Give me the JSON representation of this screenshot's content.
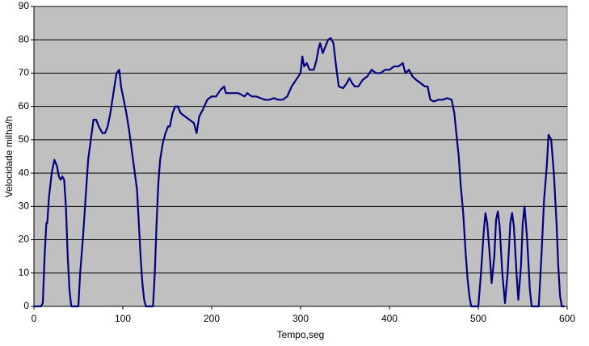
{
  "chart_data": {
    "type": "line",
    "x_label": "Tempo,seg",
    "y_label": "Velocidade milha/h",
    "x": [
      0,
      8,
      10,
      12,
      14,
      15,
      17,
      20,
      23,
      26,
      28,
      30,
      32,
      34,
      36,
      38,
      40,
      42,
      50,
      52,
      55,
      58,
      61,
      64,
      67,
      70,
      73,
      77,
      80,
      83,
      86,
      90,
      93,
      96,
      98,
      101,
      104,
      107,
      110,
      113,
      116,
      118,
      120,
      122,
      124,
      126,
      134,
      136,
      138,
      140,
      142,
      145,
      148,
      151,
      153,
      156,
      159,
      162,
      165,
      170,
      175,
      180,
      183,
      186,
      190,
      195,
      200,
      205,
      210,
      214,
      216,
      220,
      230,
      237,
      240,
      245,
      250,
      255,
      260,
      265,
      270,
      275,
      280,
      285,
      290,
      295,
      300,
      302,
      304,
      307,
      310,
      315,
      318,
      320,
      322,
      325,
      328,
      331,
      334,
      337,
      340,
      343,
      348,
      352,
      355,
      358,
      361,
      365,
      370,
      375,
      380,
      385,
      390,
      395,
      400,
      405,
      410,
      415,
      418,
      422,
      426,
      430,
      435,
      440,
      443,
      446,
      450,
      455,
      460,
      465,
      470,
      473,
      476,
      478,
      480,
      483,
      486,
      488,
      490,
      492,
      500,
      503,
      506,
      508,
      510,
      513,
      515,
      518,
      520,
      522,
      524,
      527,
      530,
      533,
      536,
      538,
      540,
      543,
      545,
      548,
      550,
      552,
      555,
      558,
      560,
      568,
      571,
      574,
      577,
      579,
      582,
      585,
      588,
      590,
      592,
      594,
      597
    ],
    "series": [
      {
        "name": "Velocidade",
        "color": "#000080",
        "values": [
          0,
          0,
          1,
          15,
          25,
          25,
          33,
          40,
          44,
          42,
          39,
          38,
          39,
          38,
          30,
          15,
          5,
          0,
          0,
          10,
          20,
          32,
          44,
          50,
          56,
          56,
          54,
          52,
          52,
          54,
          58,
          65,
          70,
          71,
          66,
          62,
          58,
          53,
          47,
          41,
          35,
          25,
          15,
          7,
          2,
          0,
          0,
          10,
          25,
          37,
          44,
          49,
          52,
          54,
          54,
          58,
          60,
          60,
          58,
          57,
          56,
          55,
          52,
          57,
          59,
          62,
          63,
          63,
          65,
          66,
          64,
          64,
          64,
          63,
          64,
          63,
          63,
          62.5,
          62,
          62,
          62.5,
          62,
          62,
          63,
          66,
          68,
          70,
          75,
          72,
          73,
          71,
          71,
          74,
          77,
          79,
          76,
          78,
          80,
          80.5,
          79,
          72,
          66,
          65.5,
          67,
          68.5,
          67,
          66,
          66,
          68,
          69,
          71,
          70,
          70,
          71,
          71,
          72,
          72,
          73,
          70,
          71,
          69,
          68,
          67,
          66,
          66,
          62,
          61.5,
          62,
          62,
          62.5,
          62,
          58,
          50,
          45,
          37,
          28,
          15,
          8,
          3,
          0,
          0,
          10,
          22,
          28,
          25,
          15,
          7,
          15,
          26,
          28.5,
          24,
          10,
          1,
          10,
          25,
          28,
          24,
          10,
          2,
          12,
          25,
          30,
          20,
          5,
          0,
          0,
          15,
          32,
          42,
          51.5,
          50,
          40,
          25,
          12,
          3,
          0,
          0
        ]
      }
    ],
    "xlim": [
      0,
      600
    ],
    "xticks": [
      0,
      100,
      200,
      300,
      400,
      500,
      600
    ],
    "ylim": [
      0,
      90
    ],
    "yticks": [
      0,
      10,
      20,
      30,
      40,
      50,
      60,
      70,
      80,
      90
    ],
    "grid": true,
    "plot_background": "#c0c0c0"
  }
}
